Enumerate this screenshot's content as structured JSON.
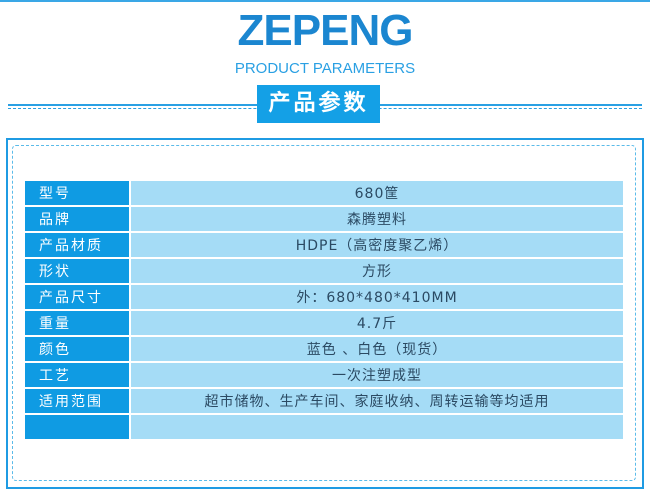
{
  "header": {
    "logo_text": "ZEPENG",
    "subtitle": "PRODUCT PARAMETERS",
    "banner": "产品参数"
  },
  "colors": {
    "accent": "#14a0e6",
    "value_bg": "#a5dcf6",
    "value_text": "#2b4a63"
  },
  "params": [
    {
      "label": "型号",
      "value": "680筐"
    },
    {
      "label": "品牌",
      "value": "森腾塑料"
    },
    {
      "label": "产品材质",
      "value": "HDPE（高密度聚乙烯）"
    },
    {
      "label": "形状",
      "value": "方形"
    },
    {
      "label": "产品尺寸",
      "value": "外：680*480*410MM"
    },
    {
      "label": "重量",
      "value": "4.7斤"
    },
    {
      "label": "颜色",
      "value": "蓝色 、白色（现货）"
    },
    {
      "label": "工艺",
      "value": "一次注塑成型"
    },
    {
      "label": "适用范围",
      "value": "超市储物、生产车间、家庭收纳、周转运输等均适用"
    },
    {
      "label": "",
      "value": ""
    }
  ]
}
